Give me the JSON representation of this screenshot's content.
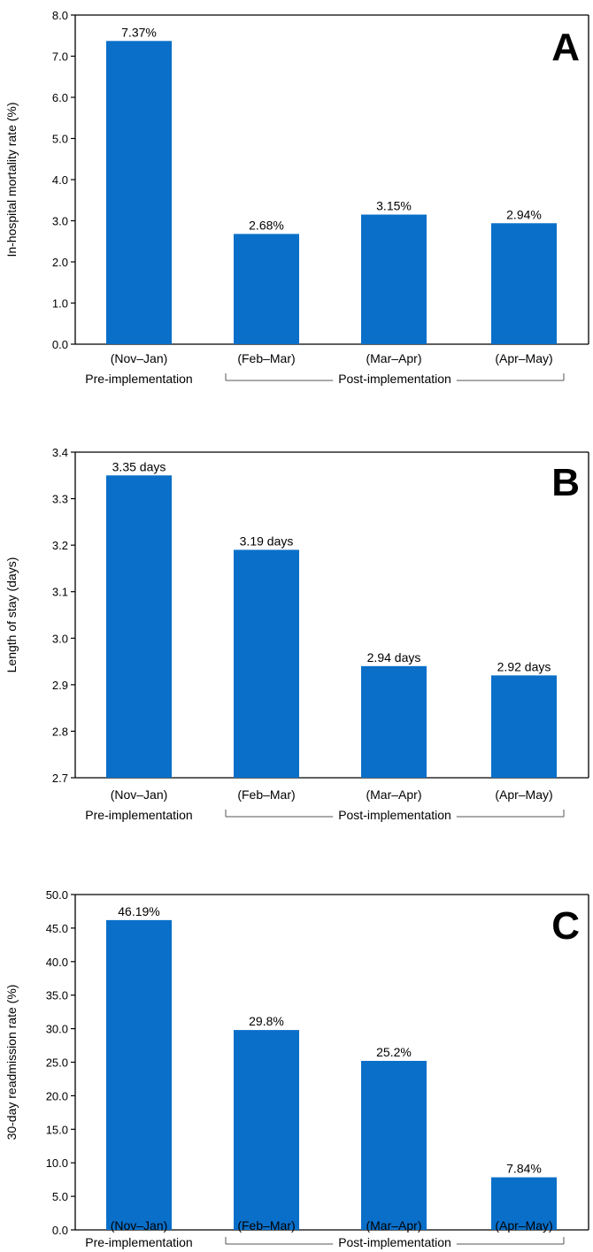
{
  "chart_data": [
    {
      "type": "bar",
      "panel_letter": "A",
      "ylabel": "In-hospital mortality rate (%)",
      "ylim": [
        0.0,
        8.0
      ],
      "yticks": [
        0.0,
        1.0,
        2.0,
        3.0,
        4.0,
        5.0,
        6.0,
        7.0,
        8.0
      ],
      "ytick_labels": [
        "0.0",
        "1.0",
        "2.0",
        "3.0",
        "4.0",
        "5.0",
        "6.0",
        "7.0",
        "8.0"
      ],
      "categories": [
        "(Nov–Jan)",
        "(Feb–Mar)",
        "(Mar–Apr)",
        "(Apr–May)"
      ],
      "values": [
        7.37,
        2.68,
        3.15,
        2.94
      ],
      "value_labels": [
        "7.37%",
        "2.68%",
        "3.15%",
        "2.94%"
      ],
      "group_labels": {
        "pre": "Pre-implementation",
        "post": "Post-implementation"
      },
      "bar_color": "#0a6fc9"
    },
    {
      "type": "bar",
      "panel_letter": "B",
      "ylabel": "Length of stay (days)",
      "ylim": [
        2.7,
        3.4
      ],
      "yticks": [
        2.7,
        2.8,
        2.9,
        3.0,
        3.1,
        3.2,
        3.3,
        3.4
      ],
      "ytick_labels": [
        "2.7",
        "2.8",
        "2.9",
        "3.0",
        "3.1",
        "3.2",
        "3.3",
        "3.4"
      ],
      "categories": [
        "(Nov–Jan)",
        "(Feb–Mar)",
        "(Mar–Apr)",
        "(Apr–May)"
      ],
      "values": [
        3.35,
        3.19,
        2.94,
        2.92
      ],
      "value_labels": [
        "3.35 days",
        "3.19 days",
        "2.94 days",
        "2.92 days"
      ],
      "group_labels": {
        "pre": "Pre-implementation",
        "post": "Post-implementation"
      },
      "bar_color": "#0a6fc9"
    },
    {
      "type": "bar",
      "panel_letter": "C",
      "ylabel": "30-day readmission rate (%)",
      "ylim": [
        0.0,
        50.0
      ],
      "yticks": [
        0.0,
        5.0,
        10.0,
        15.0,
        20.0,
        25.0,
        30.0,
        35.0,
        40.0,
        45.0,
        50.0
      ],
      "ytick_labels": [
        "0.0",
        "5.0",
        "10.0",
        "15.0",
        "20.0",
        "25.0",
        "30.0",
        "35.0",
        "40.0",
        "45.0",
        "50.0"
      ],
      "categories": [
        "(Nov–Jan)",
        "(Feb–Mar)",
        "(Mar–Apr)",
        "(Apr–May)"
      ],
      "values": [
        46.19,
        29.8,
        25.2,
        7.84
      ],
      "value_labels": [
        "46.19%",
        "29.8%",
        "25.2%",
        "7.84%"
      ],
      "group_labels": {
        "pre": "Pre-implementation",
        "post": "Post-implementation"
      },
      "bar_color": "#0a6fc9"
    }
  ]
}
